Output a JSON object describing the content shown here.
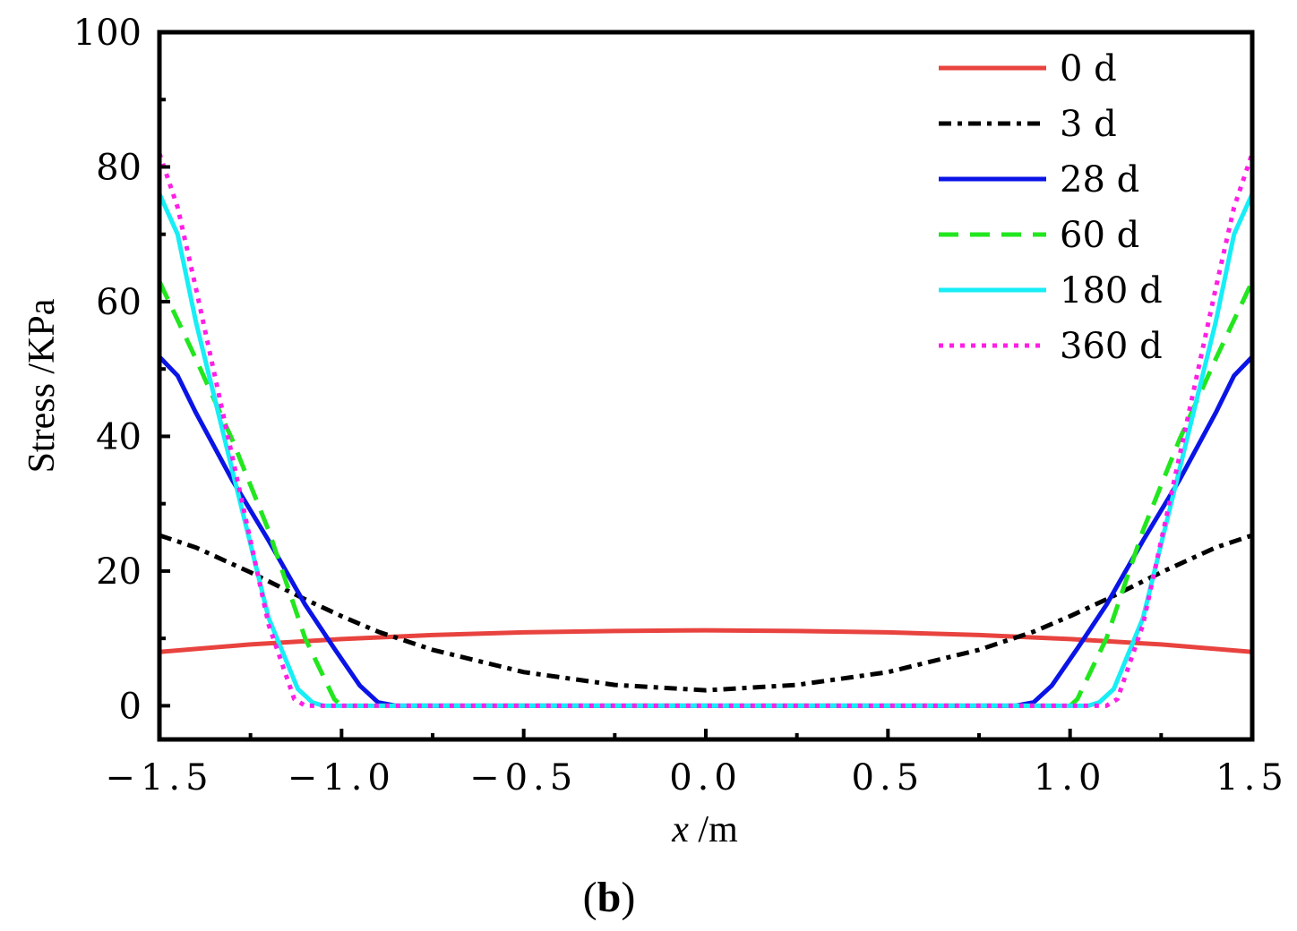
{
  "chart_data": {
    "type": "line",
    "title": "",
    "panel_label": "b",
    "xlabel_var": "x",
    "xlabel_unit": " /m",
    "ylabel": "Stress /KPa",
    "xlim": [
      -1.5,
      1.5
    ],
    "ylim": [
      -5,
      100
    ],
    "xticks": [
      {
        "value": -1.5,
        "label": "−1.5"
      },
      {
        "value": -1.0,
        "label": "−1.0"
      },
      {
        "value": -0.5,
        "label": "−0.5"
      },
      {
        "value": 0.0,
        "label": "0.0"
      },
      {
        "value": 0.5,
        "label": "0.5"
      },
      {
        "value": 1.0,
        "label": "1.0"
      },
      {
        "value": 1.5,
        "label": "1.5"
      }
    ],
    "yticks": [
      {
        "value": 0,
        "label": "0"
      },
      {
        "value": 20,
        "label": "20"
      },
      {
        "value": 40,
        "label": "40"
      },
      {
        "value": 60,
        "label": "60"
      },
      {
        "value": 80,
        "label": "80"
      },
      {
        "value": 100,
        "label": "100"
      }
    ],
    "legend_position": "top-right",
    "grid": false,
    "series": [
      {
        "name": "0 d",
        "color": "#e8433f",
        "style": "solid",
        "x": [
          -1.5,
          -1.25,
          -1.0,
          -0.75,
          -0.5,
          -0.25,
          0.0,
          0.25,
          0.5,
          0.75,
          1.0,
          1.25,
          1.5
        ],
        "y": [
          8.0,
          9.1,
          9.9,
          10.5,
          10.9,
          11.1,
          11.2,
          11.1,
          10.9,
          10.5,
          9.9,
          9.1,
          8.0
        ]
      },
      {
        "name": "3 d",
        "color": "#000000",
        "style": "dashdot",
        "x": [
          -1.5,
          -1.4,
          -1.25,
          -1.1,
          -1.0,
          -0.9,
          -0.75,
          -0.5,
          -0.25,
          0.0,
          0.25,
          0.5,
          0.75,
          0.9,
          1.0,
          1.1,
          1.25,
          1.4,
          1.5
        ],
        "y": [
          25.3,
          23.5,
          19.8,
          15.8,
          13.3,
          11.0,
          8.3,
          5.0,
          3.1,
          2.3,
          3.1,
          5.0,
          8.3,
          11.0,
          13.3,
          15.8,
          19.8,
          23.5,
          25.3
        ]
      },
      {
        "name": "28 d",
        "color": "#0a14e6",
        "style": "solid",
        "x": [
          -1.5,
          -1.45,
          -1.4,
          -1.3,
          -1.2,
          -1.1,
          -1.02,
          -0.95,
          -0.9,
          -0.85,
          0.0,
          0.85,
          0.9,
          0.95,
          1.02,
          1.1,
          1.2,
          1.3,
          1.4,
          1.45,
          1.5
        ],
        "y": [
          51.8,
          49.0,
          43.5,
          33.5,
          24.5,
          15.0,
          8.5,
          3.0,
          0.5,
          0.0,
          0.0,
          0.0,
          0.5,
          3.0,
          8.5,
          15.0,
          24.5,
          33.5,
          43.5,
          49.0,
          51.8
        ]
      },
      {
        "name": "60 d",
        "color": "#22e61e",
        "style": "dashed",
        "x": [
          -1.5,
          -1.4,
          -1.3,
          -1.2,
          -1.1,
          -1.02,
          -1.0,
          0.0,
          1.0,
          1.02,
          1.1,
          1.2,
          1.3,
          1.4,
          1.5
        ],
        "y": [
          63.0,
          51.5,
          39.5,
          26.0,
          10.0,
          1.0,
          0.0,
          0.0,
          0.0,
          1.0,
          10.0,
          26.0,
          39.5,
          51.5,
          63.0
        ]
      },
      {
        "name": "180 d",
        "color": "#17eef5",
        "style": "solid",
        "x": [
          -1.5,
          -1.45,
          -1.4,
          -1.3,
          -1.2,
          -1.12,
          -1.08,
          -1.05,
          0.0,
          1.05,
          1.08,
          1.12,
          1.2,
          1.3,
          1.4,
          1.45,
          1.5
        ],
        "y": [
          76.0,
          70.0,
          57.0,
          35.0,
          13.0,
          2.5,
          0.5,
          0.0,
          0.0,
          0.0,
          0.5,
          2.5,
          13.0,
          35.0,
          57.0,
          70.0,
          76.0
        ]
      },
      {
        "name": "360 d",
        "color": "#ff1ee6",
        "style": "dotted",
        "x": [
          -1.5,
          -1.45,
          -1.4,
          -1.3,
          -1.2,
          -1.13,
          -1.1,
          0.0,
          1.1,
          1.13,
          1.2,
          1.3,
          1.4,
          1.45,
          1.5
        ],
        "y": [
          82.0,
          74.0,
          62.0,
          37.0,
          12.0,
          1.0,
          0.0,
          0.0,
          0.0,
          1.0,
          12.0,
          37.0,
          62.0,
          74.0,
          82.0
        ]
      }
    ]
  }
}
